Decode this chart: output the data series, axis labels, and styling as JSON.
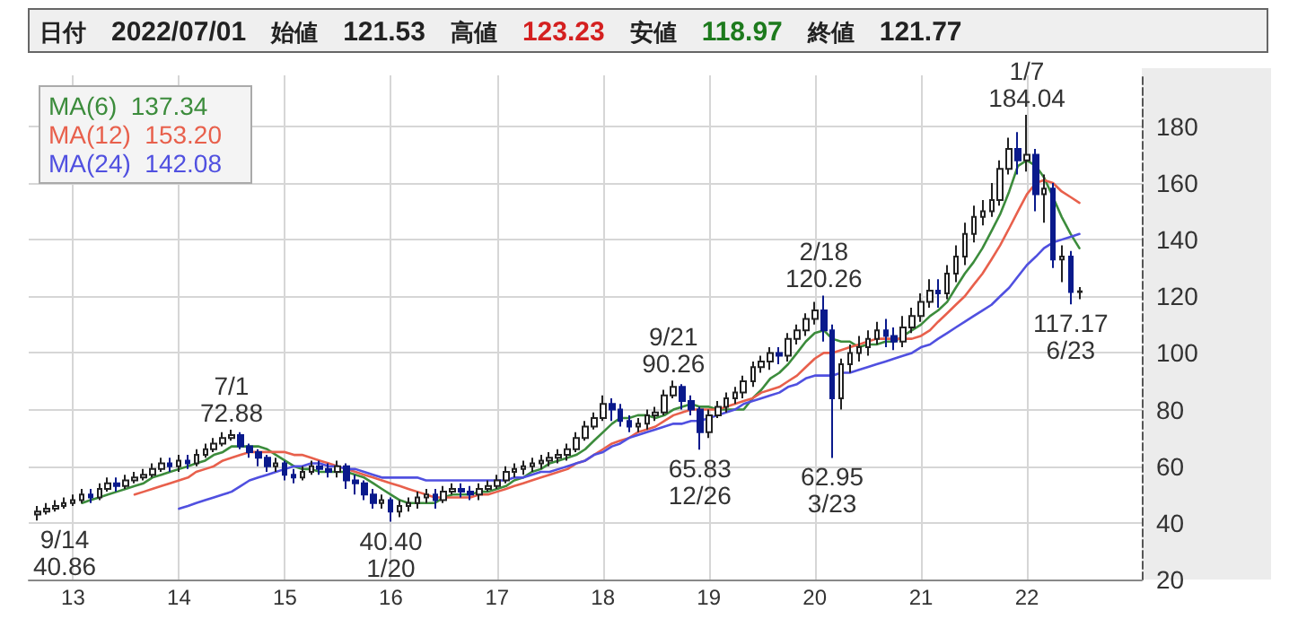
{
  "chart_data": {
    "type": "candlestick",
    "title": "日付 2022/07/01 始値 121.53 高値 123.23 安値 118.97 終値 121.77",
    "x": [
      "2012-09",
      "2012-10",
      "2012-11",
      "2012-12",
      "2013-01",
      "2013-02",
      "2013-03",
      "2013-04",
      "2013-05",
      "2013-06",
      "2013-07",
      "2013-08",
      "2013-09",
      "2013-10",
      "2013-11",
      "2013-12",
      "2014-01",
      "2014-02",
      "2014-03",
      "2014-04",
      "2014-05",
      "2014-06",
      "2014-07",
      "2014-08",
      "2014-09",
      "2014-10",
      "2014-11",
      "2014-12",
      "2015-01",
      "2015-02",
      "2015-03",
      "2015-04",
      "2015-05",
      "2015-06",
      "2015-07",
      "2015-08",
      "2015-09",
      "2015-10",
      "2015-11",
      "2015-12",
      "2016-01",
      "2016-02",
      "2016-03",
      "2016-04",
      "2016-05",
      "2016-06",
      "2016-07",
      "2016-08",
      "2016-09",
      "2016-10",
      "2016-11",
      "2016-12",
      "2017-01",
      "2017-02",
      "2017-03",
      "2017-04",
      "2017-05",
      "2017-06",
      "2017-07",
      "2017-08",
      "2017-09",
      "2017-10",
      "2017-11",
      "2017-12",
      "2018-01",
      "2018-02",
      "2018-03",
      "2018-04",
      "2018-05",
      "2018-06",
      "2018-07",
      "2018-08",
      "2018-09",
      "2018-10",
      "2018-11",
      "2018-12",
      "2019-01",
      "2019-02",
      "2019-03",
      "2019-04",
      "2019-05",
      "2019-06",
      "2019-07",
      "2019-08",
      "2019-09",
      "2019-10",
      "2019-11",
      "2019-12",
      "2020-01",
      "2020-02",
      "2020-03",
      "2020-04",
      "2020-05",
      "2020-06",
      "2020-07",
      "2020-08",
      "2020-09",
      "2020-10",
      "2020-11",
      "2020-12",
      "2021-01",
      "2021-02",
      "2021-03",
      "2021-04",
      "2021-05",
      "2021-06",
      "2021-07",
      "2021-08",
      "2021-09",
      "2021-10",
      "2021-11",
      "2021-12",
      "2022-01",
      "2022-02",
      "2022-03",
      "2022-04",
      "2022-05",
      "2022-06",
      "2022-07"
    ],
    "ohlc": [
      [
        43,
        46,
        40.86,
        44
      ],
      [
        44,
        47,
        43,
        45
      ],
      [
        45,
        48,
        44,
        46
      ],
      [
        46,
        49,
        45,
        47
      ],
      [
        47,
        50,
        46,
        48
      ],
      [
        48,
        52,
        47,
        50
      ],
      [
        50,
        52,
        47,
        49
      ],
      [
        49,
        54,
        48,
        52
      ],
      [
        52,
        56,
        51,
        54
      ],
      [
        54,
        56,
        51,
        53
      ],
      [
        53,
        57,
        52,
        55
      ],
      [
        55,
        58,
        54,
        56
      ],
      [
        56,
        59,
        55,
        57
      ],
      [
        57,
        61,
        56,
        59
      ],
      [
        59,
        63,
        58,
        61
      ],
      [
        61,
        63,
        58,
        60
      ],
      [
        60,
        64,
        58,
        62
      ],
      [
        62,
        64,
        59,
        61
      ],
      [
        61,
        66,
        60,
        64
      ],
      [
        64,
        68,
        63,
        66
      ],
      [
        66,
        70,
        65,
        68
      ],
      [
        68,
        72,
        67,
        70
      ],
      [
        70,
        72.88,
        69,
        71
      ],
      [
        71,
        72,
        66,
        67
      ],
      [
        67,
        68,
        63,
        65
      ],
      [
        65,
        66,
        60,
        63
      ],
      [
        63,
        64,
        58,
        60
      ],
      [
        60,
        63,
        58,
        61
      ],
      [
        61,
        62,
        55,
        57
      ],
      [
        57,
        59,
        54,
        56
      ],
      [
        56,
        60,
        55,
        58
      ],
      [
        58,
        62,
        57,
        60
      ],
      [
        60,
        62,
        57,
        59
      ],
      [
        59,
        61,
        56,
        58
      ],
      [
        58,
        62,
        56,
        60
      ],
      [
        60,
        61,
        52,
        55
      ],
      [
        55,
        57,
        50,
        54
      ],
      [
        54,
        55,
        48,
        50
      ],
      [
        50,
        52,
        45,
        47
      ],
      [
        47,
        50,
        45,
        48
      ],
      [
        48,
        49,
        40.4,
        44
      ],
      [
        44,
        48,
        42,
        46
      ],
      [
        46,
        49,
        44,
        47
      ],
      [
        47,
        51,
        45,
        49
      ],
      [
        49,
        52,
        47,
        50
      ],
      [
        50,
        52,
        45,
        48
      ],
      [
        48,
        53,
        47,
        51
      ],
      [
        51,
        54,
        50,
        52
      ],
      [
        52,
        54,
        49,
        51
      ],
      [
        51,
        53,
        48,
        50
      ],
      [
        50,
        54,
        48,
        52
      ],
      [
        52,
        55,
        51,
        53
      ],
      [
        53,
        57,
        52,
        55
      ],
      [
        55,
        60,
        54,
        58
      ],
      [
        58,
        61,
        56,
        59
      ],
      [
        59,
        62,
        57,
        60
      ],
      [
        60,
        63,
        58,
        61
      ],
      [
        61,
        64,
        59,
        62
      ],
      [
        62,
        65,
        60,
        63
      ],
      [
        63,
        66,
        61,
        64
      ],
      [
        64,
        68,
        62,
        66
      ],
      [
        66,
        72,
        65,
        70
      ],
      [
        70,
        76,
        69,
        74
      ],
      [
        74,
        79,
        73,
        77
      ],
      [
        77,
        85,
        76,
        82
      ],
      [
        82,
        84,
        76,
        80
      ],
      [
        80,
        82,
        74,
        76
      ],
      [
        76,
        78,
        72,
        74
      ],
      [
        74,
        77,
        72,
        75
      ],
      [
        75,
        80,
        73,
        78
      ],
      [
        78,
        81,
        76,
        79
      ],
      [
        79,
        87,
        78,
        85
      ],
      [
        85,
        90.26,
        84,
        88
      ],
      [
        88,
        89,
        80,
        83
      ],
      [
        83,
        85,
        78,
        80
      ],
      [
        80,
        81,
        65.83,
        72
      ],
      [
        72,
        80,
        70,
        78
      ],
      [
        78,
        83,
        77,
        81
      ],
      [
        81,
        86,
        79,
        84
      ],
      [
        84,
        88,
        82,
        86
      ],
      [
        86,
        92,
        84,
        90
      ],
      [
        90,
        97,
        88,
        95
      ],
      [
        95,
        99,
        93,
        97
      ],
      [
        97,
        102,
        94,
        100
      ],
      [
        100,
        102,
        96,
        99
      ],
      [
        99,
        107,
        97,
        105
      ],
      [
        105,
        110,
        103,
        108
      ],
      [
        108,
        114,
        106,
        112
      ],
      [
        112,
        118,
        110,
        115
      ],
      [
        115,
        120.26,
        104,
        108
      ],
      [
        108,
        110,
        62.95,
        84
      ],
      [
        84,
        98,
        80,
        96
      ],
      [
        96,
        103,
        93,
        100
      ],
      [
        100,
        106,
        97,
        102
      ],
      [
        102,
        108,
        99,
        105
      ],
      [
        105,
        111,
        103,
        108
      ],
      [
        108,
        112,
        102,
        106
      ],
      [
        106,
        109,
        101,
        104
      ],
      [
        104,
        113,
        102,
        109
      ],
      [
        109,
        116,
        107,
        113
      ],
      [
        113,
        121,
        111,
        118
      ],
      [
        118,
        126,
        116,
        122
      ],
      [
        122,
        126,
        116,
        121
      ],
      [
        121,
        131,
        119,
        128
      ],
      [
        128,
        138,
        125,
        134
      ],
      [
        134,
        146,
        131,
        142
      ],
      [
        142,
        152,
        139,
        148
      ],
      [
        148,
        154,
        145,
        150
      ],
      [
        150,
        160,
        148,
        154
      ],
      [
        154,
        168,
        152,
        165
      ],
      [
        165,
        176,
        163,
        172
      ],
      [
        172,
        178,
        163,
        168
      ],
      [
        168,
        184.04,
        164,
        170
      ],
      [
        170,
        172,
        150,
        156
      ],
      [
        156,
        163,
        146,
        158
      ],
      [
        158,
        160,
        130,
        133
      ],
      [
        133,
        138,
        125,
        134
      ],
      [
        134,
        136,
        117.17,
        121.53
      ],
      [
        121.53,
        123.23,
        118.97,
        121.77
      ]
    ],
    "series": [
      {
        "name": "MA(6)  137.34",
        "type": "line",
        "color": "#3c8c3c",
        "values": [
          null,
          null,
          null,
          null,
          null,
          47,
          48,
          49,
          50,
          51,
          52,
          53,
          54,
          56,
          57,
          58,
          59,
          60,
          61,
          62,
          64,
          65,
          67,
          67,
          67,
          67,
          66,
          64,
          62,
          60,
          59,
          59,
          58,
          58,
          58,
          58,
          57,
          56,
          54,
          52,
          50,
          48,
          47,
          47,
          47,
          47,
          49,
          50,
          50,
          50,
          51,
          51,
          52,
          53,
          55,
          56,
          58,
          59,
          61,
          62,
          63,
          64,
          66,
          69,
          72,
          75,
          77,
          77,
          78,
          78,
          77,
          78,
          80,
          81,
          82,
          81,
          81,
          80,
          80,
          80,
          80,
          84,
          87,
          91,
          93,
          96,
          100,
          104,
          107,
          108,
          105,
          104,
          104,
          102,
          103,
          103,
          104,
          104,
          106,
          108,
          110,
          113,
          115,
          118,
          123,
          128,
          132,
          137,
          143,
          149,
          157,
          166,
          168,
          166,
          162,
          155,
          148,
          142,
          137
        ]
      },
      {
        "name": "MA(12)  153.20",
        "type": "line",
        "color": "#e8604c",
        "values": [
          null,
          null,
          null,
          null,
          null,
          null,
          null,
          null,
          null,
          null,
          null,
          50,
          51,
          52,
          53,
          54,
          55,
          56,
          58,
          59,
          60,
          62,
          63,
          64,
          65,
          65,
          65,
          65,
          65,
          64,
          64,
          63,
          62,
          61,
          60,
          59,
          58,
          57,
          56,
          55,
          54,
          53,
          52,
          51,
          50,
          49,
          49,
          49,
          49,
          49,
          50,
          50,
          51,
          52,
          53,
          54,
          55,
          56,
          57,
          58,
          59,
          61,
          62,
          64,
          66,
          68,
          69,
          70,
          72,
          73,
          74,
          76,
          78,
          79,
          80,
          80,
          80,
          80,
          81,
          82,
          83,
          84,
          86,
          87,
          88,
          90,
          92,
          95,
          98,
          100,
          100,
          101,
          102,
          103,
          104,
          105,
          105,
          105,
          105,
          105,
          106,
          108,
          111,
          114,
          117,
          120,
          124,
          128,
          133,
          138,
          144,
          150,
          156,
          160,
          161,
          160,
          157,
          155,
          153
        ]
      },
      {
        "name": "MA(24)  142.08",
        "type": "line",
        "color": "#5050e0",
        "values": [
          null,
          null,
          null,
          null,
          null,
          null,
          null,
          null,
          null,
          null,
          null,
          null,
          null,
          null,
          null,
          null,
          45,
          46,
          47,
          48,
          49,
          50,
          51,
          53,
          55,
          56,
          57,
          58,
          59,
          60,
          60,
          61,
          61,
          60,
          60,
          59,
          59,
          58,
          57,
          56,
          56,
          56,
          56,
          56,
          55,
          55,
          55,
          55,
          55,
          55,
          55,
          55,
          55,
          55,
          56,
          56,
          57,
          58,
          58,
          59,
          60,
          61,
          62,
          64,
          65,
          67,
          68,
          70,
          71,
          72,
          73,
          74,
          75,
          75,
          76,
          76,
          77,
          78,
          79,
          80,
          82,
          83,
          84,
          85,
          86,
          88,
          89,
          91,
          92,
          92,
          92,
          93,
          93,
          94,
          95,
          96,
          97,
          98,
          99,
          100,
          102,
          103,
          105,
          107,
          109,
          111,
          113,
          115,
          117,
          120,
          123,
          127,
          131,
          134,
          137,
          139,
          140,
          141,
          142
        ]
      }
    ],
    "annotations": [
      {
        "text": "9/14\n40.86",
        "x": "2012-09",
        "y": 40.86
      },
      {
        "text": "7/1\n72.88",
        "x": "2014-07",
        "y": 72.88
      },
      {
        "text": "40.40\n1/20",
        "x": "2016-01",
        "y": 40.4
      },
      {
        "text": "9/21\n90.26",
        "x": "2018-09",
        "y": 90.26
      },
      {
        "text": "65.83\n12/26",
        "x": "2018-12",
        "y": 65.83
      },
      {
        "text": "2/18\n120.26",
        "x": "2020-02",
        "y": 120.26
      },
      {
        "text": "62.95\n3/23",
        "x": "2020-03",
        "y": 62.95
      },
      {
        "text": "1/7\n184.04",
        "x": "2022-01",
        "y": 184.04
      },
      {
        "text": "117.17\n6/23",
        "x": "2022-06",
        "y": 117.17
      }
    ],
    "xlim": [
      "2012-08",
      "2023-02"
    ],
    "xticks": [
      {
        "value": "2013-01",
        "label": "13"
      },
      {
        "value": "2014-01",
        "label": "14"
      },
      {
        "value": "2015-01",
        "label": "15"
      },
      {
        "value": "2016-01",
        "label": "16"
      },
      {
        "value": "2017-01",
        "label": "17"
      },
      {
        "value": "2018-01",
        "label": "18"
      },
      {
        "value": "2019-01",
        "label": "19"
      },
      {
        "value": "2020-01",
        "label": "20"
      },
      {
        "value": "2021-01",
        "label": "21"
      },
      {
        "value": "2022-01",
        "label": "22"
      }
    ],
    "ylim": [
      20,
      198
    ],
    "yticks": [
      20,
      40,
      60,
      80,
      100,
      120,
      140,
      160,
      180
    ],
    "grid": true,
    "marker": "none",
    "line_style": "solid"
  }
}
